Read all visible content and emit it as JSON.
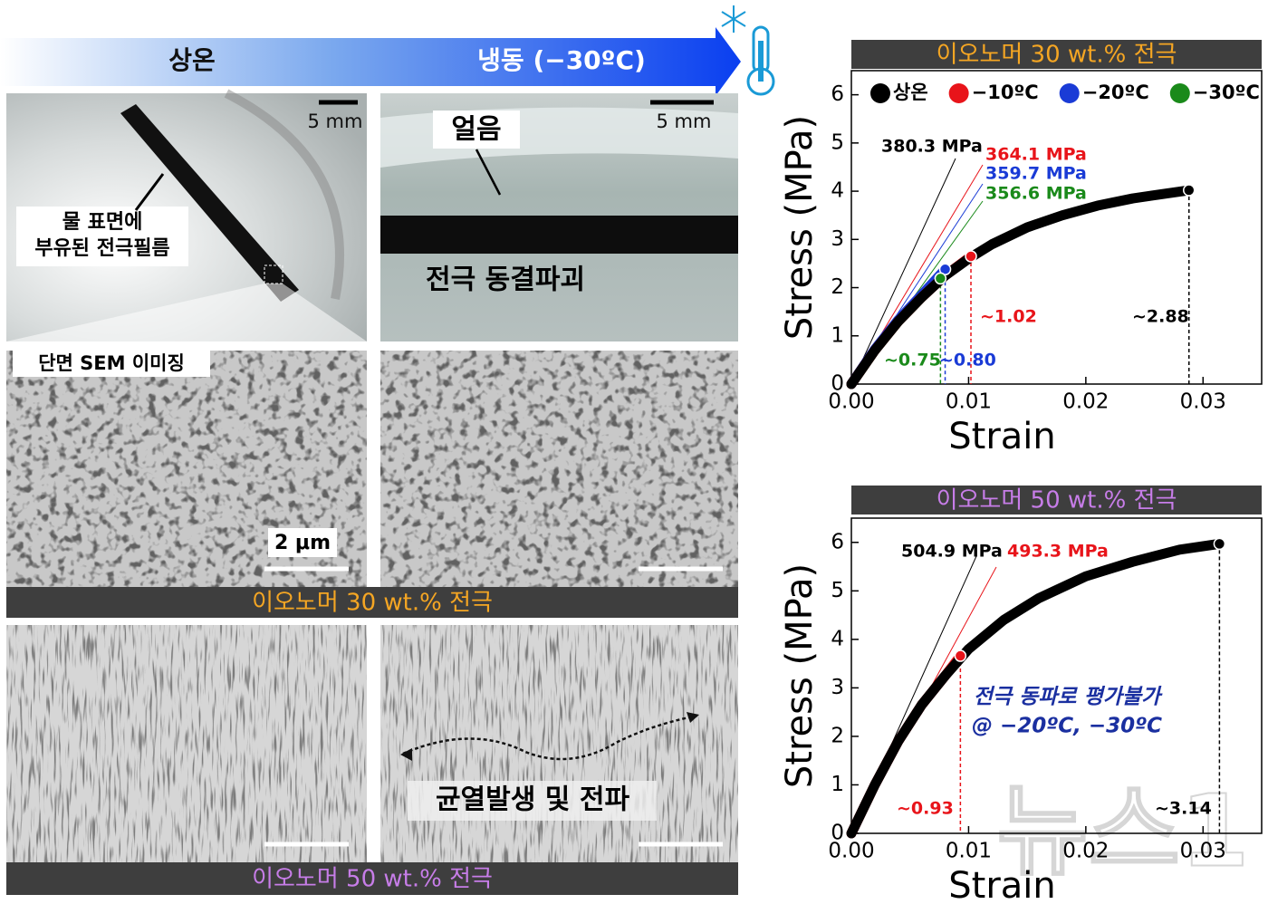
{
  "banner": {
    "left": "상온",
    "right": "냉동 (−30ºC)"
  },
  "photos": {
    "scale_bar_left": "5 mm",
    "scale_bar_right": "5 mm",
    "film_caption": [
      "물 표면에",
      "부유된 전극필름"
    ],
    "ice": "얼음",
    "fracture": "전극 동결파괴",
    "sem_label": "단면 SEM 이미징",
    "sem_scale": "2 μm",
    "crack": "균열발생 및 전파"
  },
  "bands": [
    "이오노머 30 wt.% 전극",
    "이오노머 50 wt.% 전극"
  ],
  "watermark": "뉴스1",
  "chart_data": [
    {
      "type": "line",
      "title": "이오노머 30 wt.% 전극",
      "x_label": "Strain",
      "y_label": "Stress (MPa)",
      "xlim": [
        0,
        0.035
      ],
      "xticks": [
        {
          "value": 0,
          "label": "0.00"
        },
        0.01,
        0.02,
        0.03
      ],
      "ylim": [
        0,
        6.5
      ],
      "yticks": [
        0,
        1,
        2,
        3,
        4,
        5,
        6
      ],
      "legend": true,
      "series": [
        {
          "name": "상온",
          "color": "#000000",
          "x": [
            0,
            0.002,
            0.004,
            0.006,
            0.008,
            0.01,
            0.012,
            0.015,
            0.018,
            0.021,
            0.024,
            0.0288
          ],
          "values": [
            0,
            0.7,
            1.3,
            1.8,
            2.25,
            2.6,
            2.9,
            3.25,
            3.5,
            3.7,
            3.85,
            4.02
          ],
          "modulus_label": "380.3 MPa",
          "strain_label": "~2.88"
        },
        {
          "name": "−10ºC",
          "color": "#e8141a",
          "x": [
            0,
            0.002,
            0.004,
            0.006,
            0.008,
            0.0102
          ],
          "values": [
            0,
            0.7,
            1.3,
            1.8,
            2.25,
            2.65
          ],
          "modulus_label": "364.1 MPa",
          "strain_label": "~1.02"
        },
        {
          "name": "−20ºC",
          "color": "#1a3bd6",
          "x": [
            0,
            0.002,
            0.004,
            0.006,
            0.008
          ],
          "values": [
            0,
            0.72,
            1.33,
            1.85,
            2.38
          ],
          "modulus_label": "359.7 MPa",
          "strain_label": "~0.80"
        },
        {
          "name": "−30ºC",
          "color": "#1a8a1a",
          "x": [
            0,
            0.002,
            0.004,
            0.006,
            0.0076
          ],
          "values": [
            0,
            0.7,
            1.3,
            1.8,
            2.19
          ],
          "modulus_label": "356.6 MPa",
          "strain_label": "~0.75"
        }
      ]
    },
    {
      "type": "line",
      "title": "이오노머 50 wt.% 전극",
      "x_label": "Strain",
      "y_label": "Stress (MPa)",
      "xlim": [
        0,
        0.035
      ],
      "xticks": [
        {
          "value": 0,
          "label": "0.00"
        },
        0.01,
        0.02,
        0.03
      ],
      "ylim": [
        0,
        6.5
      ],
      "yticks": [
        0,
        1,
        2,
        3,
        4,
        5,
        6
      ],
      "legend": false,
      "note": [
        "전극 동파로 평가불가",
        "@ −20ºC, −30ºC"
      ],
      "series": [
        {
          "color": "#000000",
          "x": [
            0,
            0.002,
            0.004,
            0.006,
            0.008,
            0.01,
            0.013,
            0.016,
            0.02,
            0.024,
            0.028,
            0.0314
          ],
          "values": [
            0,
            1.0,
            1.9,
            2.65,
            3.25,
            3.8,
            4.4,
            4.85,
            5.3,
            5.6,
            5.85,
            5.97
          ],
          "modulus_label": "504.9 MPa",
          "strain_label": "~3.14"
        },
        {
          "color": "#e8141a",
          "x": [
            0,
            0.002,
            0.004,
            0.006,
            0.008,
            0.0093
          ],
          "values": [
            0,
            1.0,
            1.9,
            2.65,
            3.25,
            3.66
          ],
          "modulus_label": "493.3 MPa",
          "strain_label": "~0.93"
        }
      ]
    }
  ]
}
